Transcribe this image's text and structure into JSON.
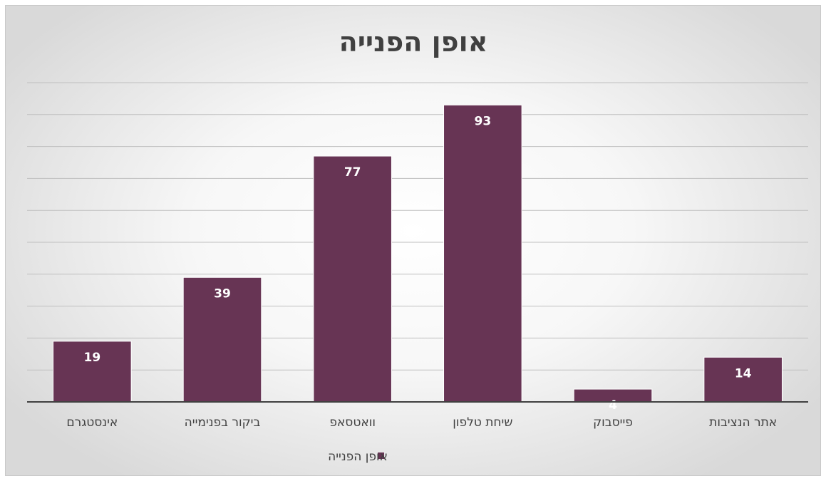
{
  "chart_data": {
    "type": "bar",
    "title": "אופן הפנייה",
    "categories": [
      "אתר הנציבות",
      "פייסבוק",
      "שיחת טלפון",
      "וואטסאפ",
      "ביקור בפנימייה",
      "אינסטגרם"
    ],
    "series": [
      {
        "name": "אופן הפנייה",
        "values": [
          14,
          4,
          93,
          77,
          39,
          19
        ]
      }
    ],
    "category_order": "right-to-left",
    "ylim": [
      0,
      100
    ],
    "y_gridline_step": 10,
    "y_axis_labels_visible": false,
    "grid": true,
    "data_labels": true,
    "legend_position": "bottom",
    "colors": {
      "bar": "#673454",
      "bar_edge": "#ffffff",
      "gridline": "#bfbfbf",
      "axis": "#404040",
      "text": "#404040",
      "value_label": "#ffffff"
    }
  }
}
